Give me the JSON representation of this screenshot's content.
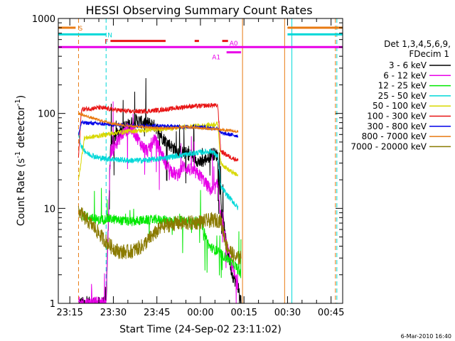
{
  "chart_data": {
    "type": "line",
    "title": "HESSI Observing Summary Count Rates",
    "ylabel_main": "Count Rate (s",
    "ylabel_sup1": "-1",
    "ylabel_mid": " detector",
    "ylabel_sup2": "-1",
    "ylabel_end": ")",
    "xlabel": "Start Time (24-Sep-02 23:11:02)",
    "date_stamp": "6-Mar-2010 16:40",
    "y_scale": "log",
    "ylim": [
      1,
      1000
    ],
    "xlim": [
      "23:11:02",
      "00:49:00"
    ],
    "y_ticks": [
      {
        "v": 1,
        "label": "1"
      },
      {
        "v": 10,
        "label": "10"
      },
      {
        "v": 100,
        "label": "100"
      },
      {
        "v": 1000,
        "label": "1000"
      }
    ],
    "x_ticks": [
      {
        "t": "23:15",
        "label": "23:15"
      },
      {
        "t": "23:30",
        "label": "23:30"
      },
      {
        "t": "23:45",
        "label": "23:45"
      },
      {
        "t": "00:00",
        "label": "00:00"
      },
      {
        "t": "00:15",
        "label": "00:15"
      },
      {
        "t": "00:30",
        "label": "00:30"
      },
      {
        "t": "00:45",
        "label": "00:45"
      }
    ],
    "legend": {
      "placement": "right",
      "header1": "Det 1,3,4,5,6,9,",
      "header2": "FDecim 1"
    },
    "flags": [
      {
        "name": "S",
        "color": "#e87a12",
        "value": 800,
        "segments": [
          [
            "23:11:02",
            "23:17:00"
          ],
          [
            "00:30:00",
            "00:49:00"
          ]
        ],
        "label_t": "23:18"
      },
      {
        "name": "N",
        "color": "#00d8d8",
        "value": 680,
        "segments": [
          [
            "23:11:02",
            "23:27:30"
          ],
          [
            "00:30:00",
            "00:49:00"
          ]
        ],
        "label_t": "23:28"
      },
      {
        "name": "F",
        "color": "#e81414",
        "value": 580,
        "segments": [
          [
            "23:29:00",
            "23:48:00"
          ],
          [
            "23:58:00",
            "23:59:30"
          ],
          [
            "00:07:30",
            "00:09:30"
          ]
        ],
        "label_t": "23:27"
      },
      {
        "name": "A0",
        "color": "#e800e8",
        "value": 500,
        "segments": [
          [
            "23:11:02",
            "00:49:00"
          ]
        ],
        "label_t": "00:10"
      },
      {
        "name": "A1",
        "color": "#e800e8",
        "value": 440,
        "segments": [
          [
            "00:09:00",
            "00:14:00"
          ]
        ],
        "label_t": "00:04"
      }
    ],
    "vlines": [
      {
        "t": "23:18:00",
        "color": "#e87a12",
        "dash": true
      },
      {
        "t": "23:27:30",
        "color": "#00d8d8",
        "dash": true
      },
      {
        "t": "00:14:30",
        "color": "#e87a12",
        "dash": false
      },
      {
        "t": "00:29:00",
        "color": "#e87a12",
        "dash": false
      },
      {
        "t": "00:31:30",
        "color": "#00d8d8",
        "dash": false
      },
      {
        "t": "00:46:30",
        "color": "#e87a12",
        "dash": true
      },
      {
        "t": "00:47:00",
        "color": "#00d8d8",
        "dash": true
      }
    ],
    "series": [
      {
        "name": "3 - 6 keV",
        "color": "#000000",
        "jitter": 0.07,
        "spiky": true,
        "points": [
          [
            "23:18:00",
            1.0
          ],
          [
            "23:27:30",
            1.0
          ],
          [
            "23:29:00",
            45
          ],
          [
            "23:31:00",
            60
          ],
          [
            "23:34:00",
            72
          ],
          [
            "23:38:00",
            85
          ],
          [
            "23:40:00",
            80
          ],
          [
            "23:43:00",
            78
          ],
          [
            "23:45:00",
            70
          ],
          [
            "23:47:00",
            55
          ],
          [
            "23:49:00",
            48
          ],
          [
            "23:52:00",
            40
          ],
          [
            "23:55:00",
            38
          ],
          [
            "23:57:00",
            36
          ],
          [
            "00:00:00",
            30
          ],
          [
            "00:02:00",
            33
          ],
          [
            "00:04:00",
            38
          ],
          [
            "00:06:00",
            36
          ],
          [
            "00:07:00",
            12
          ],
          [
            "00:09:00",
            4
          ],
          [
            "00:11:00",
            2
          ],
          [
            "00:13:00",
            1.5
          ],
          [
            "00:14:00",
            1.0
          ]
        ]
      },
      {
        "name": "6 - 12 keV",
        "color": "#e800e8",
        "jitter": 0.07,
        "spiky": true,
        "points": [
          [
            "23:18:00",
            1.0
          ],
          [
            "23:27:30",
            1.0
          ],
          [
            "23:29:00",
            40
          ],
          [
            "23:31:00",
            48
          ],
          [
            "23:33:00",
            60
          ],
          [
            "23:35:00",
            70
          ],
          [
            "23:37:00",
            65
          ],
          [
            "23:40:00",
            45
          ],
          [
            "23:42:00",
            40
          ],
          [
            "23:44:00",
            55
          ],
          [
            "23:46:00",
            42
          ],
          [
            "23:48:00",
            30
          ],
          [
            "23:50:00",
            25
          ],
          [
            "23:52:00",
            22
          ],
          [
            "23:54:00",
            28
          ],
          [
            "23:57:00",
            25
          ],
          [
            "00:00:00",
            22
          ],
          [
            "00:02:00",
            18
          ],
          [
            "00:04:00",
            15
          ],
          [
            "00:06:00",
            18
          ],
          [
            "00:07:00",
            8
          ],
          [
            "00:10:00",
            3
          ],
          [
            "00:13:00",
            1.5
          ]
        ]
      },
      {
        "name": "12 - 25 keV",
        "color": "#00e800",
        "jitter": 0.05,
        "spiky": true,
        "points": [
          [
            "23:19:00",
            8.5
          ],
          [
            "23:22:00",
            8.0
          ],
          [
            "23:25:00",
            7.5
          ],
          [
            "23:28:00",
            7.8
          ],
          [
            "23:32:00",
            7.5
          ],
          [
            "23:36:00",
            7.2
          ],
          [
            "23:40:00",
            7.5
          ],
          [
            "23:45:00",
            7.6
          ],
          [
            "23:50:00",
            7.5
          ],
          [
            "23:55:00",
            7.4
          ],
          [
            "00:00:00",
            7.4
          ],
          [
            "00:03:00",
            4.0
          ],
          [
            "00:06:00",
            3.5
          ],
          [
            "00:09:00",
            3.0
          ],
          [
            "00:12:00",
            2.5
          ],
          [
            "00:14:00",
            2.0
          ]
        ]
      },
      {
        "name": "25 - 50 keV",
        "color": "#00d8d8",
        "jitter": 0.03,
        "spiky": false,
        "points": [
          [
            "23:18:00",
            60
          ],
          [
            "23:19:00",
            45
          ],
          [
            "23:21:00",
            38
          ],
          [
            "23:25:00",
            34
          ],
          [
            "23:30:00",
            33
          ],
          [
            "23:35:00",
            32
          ],
          [
            "23:40:00",
            32
          ],
          [
            "23:45:00",
            33
          ],
          [
            "23:50:00",
            35
          ],
          [
            "23:55:00",
            37
          ],
          [
            "00:00:00",
            39
          ],
          [
            "00:04:00",
            40
          ],
          [
            "00:06:00",
            35
          ],
          [
            "00:07:00",
            17
          ],
          [
            "00:09:00",
            14
          ],
          [
            "00:11:00",
            12
          ],
          [
            "00:13:00",
            10
          ]
        ]
      },
      {
        "name": "50 - 100 keV",
        "color": "#d8d800",
        "jitter": 0.025,
        "spiky": false,
        "points": [
          [
            "23:18:00",
            20
          ],
          [
            "23:20:00",
            55
          ],
          [
            "23:25:00",
            58
          ],
          [
            "23:30:00",
            62
          ],
          [
            "23:35:00",
            65
          ],
          [
            "23:40:00",
            66
          ],
          [
            "23:45:00",
            68
          ],
          [
            "23:50:00",
            70
          ],
          [
            "23:55:00",
            72
          ],
          [
            "00:00:00",
            74
          ],
          [
            "00:04:00",
            76
          ],
          [
            "00:06:00",
            78
          ],
          [
            "00:07:00",
            30
          ],
          [
            "00:10:00",
            25
          ],
          [
            "00:13:00",
            22
          ]
        ]
      },
      {
        "name": "100 - 300 keV",
        "color": "#e81414",
        "jitter": 0.025,
        "spiky": false,
        "points": [
          [
            "23:18:00",
            35
          ],
          [
            "23:19:00",
            110
          ],
          [
            "23:25:00",
            115
          ],
          [
            "23:30:00",
            110
          ],
          [
            "23:35:00",
            105
          ],
          [
            "23:40:00",
            105
          ],
          [
            "23:45:00",
            108
          ],
          [
            "23:50:00",
            112
          ],
          [
            "23:55:00",
            118
          ],
          [
            "00:00:00",
            120
          ],
          [
            "00:04:00",
            122
          ],
          [
            "00:06:00",
            120
          ],
          [
            "00:07:00",
            40
          ],
          [
            "00:10:00",
            35
          ],
          [
            "00:13:00",
            32
          ]
        ]
      },
      {
        "name": "300 - 800 keV",
        "color": "#0000e8",
        "jitter": 0.02,
        "spiky": false,
        "points": [
          [
            "23:18:00",
            60
          ],
          [
            "23:19:00",
            80
          ],
          [
            "23:25:00",
            78
          ],
          [
            "23:30:00",
            76
          ],
          [
            "23:35:00",
            75
          ],
          [
            "23:40:00",
            74
          ],
          [
            "23:45:00",
            74
          ],
          [
            "23:50:00",
            73
          ],
          [
            "23:55:00",
            72
          ],
          [
            "00:00:00",
            72
          ],
          [
            "00:04:00",
            70
          ],
          [
            "00:06:00",
            70
          ],
          [
            "00:07:00",
            62
          ],
          [
            "00:10:00",
            60
          ],
          [
            "00:13:00",
            58
          ]
        ]
      },
      {
        "name": "800 - 7000 keV",
        "color": "#e87a12",
        "jitter": 0.015,
        "spiky": false,
        "points": [
          [
            "23:18:00",
            100
          ],
          [
            "23:20:00",
            95
          ],
          [
            "23:25:00",
            85
          ],
          [
            "23:30:00",
            78
          ],
          [
            "23:35:00",
            74
          ],
          [
            "23:40:00",
            72
          ],
          [
            "23:45:00",
            70
          ],
          [
            "23:50:00",
            70
          ],
          [
            "23:55:00",
            72
          ],
          [
            "00:00:00",
            70
          ],
          [
            "00:05:00",
            68
          ],
          [
            "00:10:00",
            66
          ],
          [
            "00:13:00",
            64
          ]
        ]
      },
      {
        "name": "7000 - 20000 keV",
        "color": "#8a7a00",
        "jitter": 0.08,
        "spiky": false,
        "points": [
          [
            "23:18:00",
            9.5
          ],
          [
            "23:20:00",
            8.0
          ],
          [
            "23:23:00",
            6.5
          ],
          [
            "23:26:00",
            5.0
          ],
          [
            "23:29:00",
            4.0
          ],
          [
            "23:32:00",
            3.5
          ],
          [
            "23:36:00",
            3.5
          ],
          [
            "23:40:00",
            4.0
          ],
          [
            "23:43:00",
            5.0
          ],
          [
            "23:47:00",
            6.5
          ],
          [
            "23:52:00",
            7.0
          ],
          [
            "23:56:00",
            7.0
          ],
          [
            "00:00:00",
            7.2
          ],
          [
            "00:04:00",
            7.5
          ],
          [
            "00:07:00",
            7.5
          ],
          [
            "00:09:00",
            4.0
          ],
          [
            "00:12:00",
            3.0
          ],
          [
            "00:14:00",
            3.0
          ]
        ]
      }
    ]
  }
}
